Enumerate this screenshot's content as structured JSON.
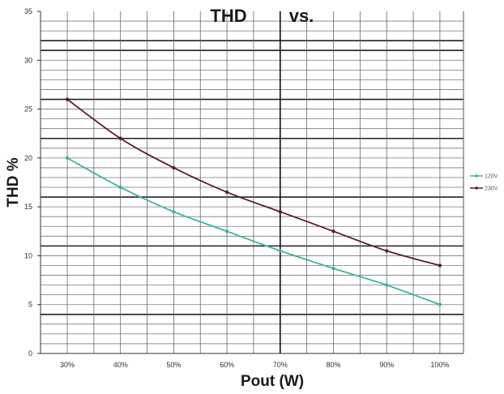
{
  "chart_data": {
    "type": "line",
    "title_left": "THD",
    "title_right": "vs.",
    "xlabel": "Pout (W)",
    "ylabel": "THD %",
    "categories": [
      "30%",
      "40%",
      "50%",
      "60%",
      "70%",
      "80%",
      "90%",
      "100%"
    ],
    "ylim": [
      0,
      35
    ],
    "yticks": [
      "0",
      "5",
      "10",
      "15",
      "20",
      "25",
      "30",
      "35"
    ],
    "grid": true,
    "legend_position": "right",
    "series": [
      {
        "name": "120V",
        "color": "#3cb3a4",
        "values": [
          20,
          17,
          14.5,
          12.5,
          10.5,
          8.7,
          7,
          5
        ]
      },
      {
        "name": "230V",
        "color": "#5a1e2a",
        "values": [
          26,
          22,
          19,
          16.5,
          14.5,
          12.5,
          10.5,
          9
        ]
      }
    ]
  }
}
